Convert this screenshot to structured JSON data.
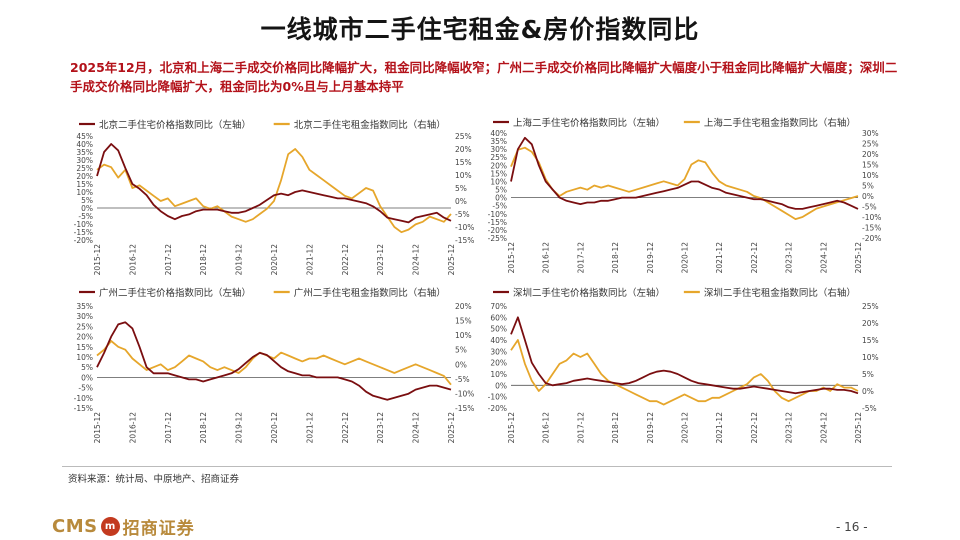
{
  "title": "一线城市二手住宅租金&房价指数同比",
  "summary": "2025年12月，北京和上海二手成交价格同比降幅扩大，租金同比降幅收窄；广州二手成交价格同比降幅扩大幅度小于租金同比降幅扩大幅度；深圳二手成交价格同比降幅扩大，租金同比为0%且与上月基本持平",
  "source": "资料来源：统计局、中原地产、招商证券",
  "footer": {
    "logo_text": "CMS",
    "logo_mark": "m",
    "logo_cn": "招商证券",
    "page_number": "- 16 -"
  },
  "colors": {
    "price": "#7a0e10",
    "rent": "#e6a62b",
    "zero": "#555555"
  },
  "chart_data": [
    {
      "type": "line",
      "city": "北京",
      "legend": [
        "北京二手住宅价格指数同比（左轴）",
        "北京二手住宅租金指数同比（右轴）"
      ],
      "x_ticks": [
        "2015-12",
        "2016-12",
        "2017-12",
        "2018-12",
        "2019-12",
        "2020-12",
        "2021-12",
        "2022-12",
        "2023-12",
        "2024-12",
        "2025-12"
      ],
      "left_axis": {
        "min": -20,
        "max": 45,
        "step": 5
      },
      "right_axis": {
        "min": -15,
        "max": 25,
        "step": 5
      },
      "series": [
        {
          "name": "北京二手住宅价格指数同比（左轴）",
          "axis": "left",
          "color": "#7a0e10",
          "values": [
            20,
            35,
            40,
            36,
            25,
            15,
            12,
            8,
            2,
            -2,
            -5,
            -7,
            -5,
            -4,
            -2,
            -1,
            -1,
            -1,
            -2,
            -3,
            -3,
            -2,
            0,
            2,
            5,
            8,
            9,
            8,
            10,
            11,
            10,
            9,
            8,
            7,
            6,
            6,
            5,
            4,
            3,
            1,
            -2,
            -6,
            -7,
            -8,
            -9,
            -6,
            -5,
            -4,
            -3,
            -6,
            -8
          ]
        },
        {
          "name": "北京二手住宅租金指数同比（右轴）",
          "axis": "right",
          "color": "#e6a62b",
          "values": [
            12,
            14,
            13,
            9,
            12,
            5,
            6,
            4,
            2,
            0,
            1,
            -2,
            -1,
            0,
            1,
            -2,
            -3,
            -2,
            -4,
            -6,
            -7,
            -8,
            -7,
            -5,
            -3,
            0,
            8,
            18,
            20,
            17,
            12,
            10,
            8,
            6,
            4,
            2,
            1,
            3,
            5,
            4,
            -2,
            -6,
            -10,
            -12,
            -11,
            -9,
            -8,
            -6,
            -7,
            -8,
            -5
          ]
        }
      ]
    },
    {
      "type": "line",
      "city": "上海",
      "legend": [
        "上海二手住宅价格指数同比（左轴）",
        "上海二手住宅租金指数同比（右轴）"
      ],
      "x_ticks": [
        "2015-12",
        "2016-12",
        "2017-12",
        "2018-12",
        "2019-12",
        "2020-12",
        "2021-12",
        "2022-12",
        "2023-12",
        "2024-12",
        "2025-12"
      ],
      "left_axis": {
        "min": -25,
        "max": 40,
        "step": 5
      },
      "right_axis": {
        "min": -20,
        "max": 30,
        "step": 5
      },
      "series": [
        {
          "name": "上海二手住宅价格指数同比（左轴）",
          "axis": "left",
          "color": "#7a0e10",
          "values": [
            10,
            30,
            37,
            33,
            20,
            10,
            5,
            0,
            -2,
            -3,
            -4,
            -3,
            -3,
            -2,
            -2,
            -1,
            0,
            0,
            0,
            1,
            2,
            3,
            4,
            5,
            6,
            8,
            10,
            10,
            8,
            6,
            5,
            3,
            2,
            1,
            0,
            -1,
            -1,
            -2,
            -3,
            -4,
            -6,
            -7,
            -7,
            -6,
            -5,
            -4,
            -3,
            -2,
            -3,
            -5,
            -7
          ]
        },
        {
          "name": "上海二手住宅租金指数同比（右轴）",
          "axis": "right",
          "color": "#e6a62b",
          "values": [
            14,
            22,
            23,
            21,
            16,
            8,
            3,
            0,
            2,
            3,
            4,
            3,
            5,
            4,
            5,
            4,
            3,
            2,
            3,
            4,
            5,
            6,
            7,
            6,
            5,
            8,
            15,
            17,
            16,
            11,
            7,
            5,
            4,
            3,
            2,
            0,
            -1,
            -3,
            -5,
            -7,
            -9,
            -11,
            -10,
            -8,
            -6,
            -5,
            -4,
            -3,
            -2,
            -1,
            0
          ]
        }
      ]
    },
    {
      "type": "line",
      "city": "广州",
      "legend": [
        "广州二手住宅价格指数同比（左轴）",
        "广州二手住宅租金指数同比（右轴）"
      ],
      "x_ticks": [
        "2015-12",
        "2016-12",
        "2017-12",
        "2018-12",
        "2019-12",
        "2020-12",
        "2021-12",
        "2022-12",
        "2023-12",
        "2024-12",
        "2025-12"
      ],
      "left_axis": {
        "min": -15,
        "max": 35,
        "step": 5
      },
      "right_axis": {
        "min": -15,
        "max": 20,
        "step": 5
      },
      "series": [
        {
          "name": "广州二手住宅价格指数同比（左轴）",
          "axis": "left",
          "color": "#7a0e10",
          "values": [
            5,
            12,
            20,
            26,
            27,
            24,
            15,
            5,
            2,
            2,
            2,
            1,
            0,
            -1,
            -1,
            -2,
            -1,
            0,
            1,
            2,
            4,
            7,
            10,
            12,
            11,
            8,
            5,
            3,
            2,
            1,
            1,
            0,
            0,
            0,
            0,
            -1,
            -2,
            -4,
            -7,
            -9,
            -10,
            -11,
            -10,
            -9,
            -8,
            -6,
            -5,
            -4,
            -4,
            -5,
            -6
          ]
        },
        {
          "name": "广州二手住宅租金指数同比（右轴）",
          "axis": "right",
          "color": "#e6a62b",
          "values": [
            3,
            5,
            8,
            6,
            5,
            2,
            0,
            -2,
            -1,
            0,
            -2,
            -1,
            1,
            3,
            2,
            1,
            -1,
            -2,
            -1,
            -2,
            -3,
            -1,
            2,
            4,
            3,
            2,
            4,
            3,
            2,
            1,
            2,
            2,
            3,
            2,
            1,
            0,
            1,
            2,
            1,
            0,
            -1,
            -2,
            -3,
            -2,
            -1,
            0,
            -1,
            -2,
            -3,
            -4,
            -7
          ]
        }
      ]
    },
    {
      "type": "line",
      "city": "深圳",
      "legend": [
        "深圳二手住宅价格指数同比（左轴）",
        "深圳二手住宅租金指数同比（右轴）"
      ],
      "x_ticks": [
        "2015-12",
        "2016-12",
        "2017-12",
        "2018-12",
        "2019-12",
        "2020-12",
        "2021-12",
        "2022-12",
        "2023-12",
        "2024-12",
        "2025-12"
      ],
      "left_axis": {
        "min": -20,
        "max": 70,
        "step": 10
      },
      "right_axis": {
        "min": -5,
        "max": 25,
        "step": 5
      },
      "series": [
        {
          "name": "深圳二手住宅价格指数同比（左轴）",
          "axis": "left",
          "color": "#7a0e10",
          "values": [
            45,
            60,
            40,
            20,
            10,
            2,
            0,
            1,
            2,
            4,
            5,
            6,
            5,
            4,
            3,
            2,
            1,
            2,
            4,
            7,
            10,
            12,
            13,
            12,
            10,
            7,
            4,
            2,
            1,
            0,
            -1,
            -2,
            -3,
            -3,
            -2,
            -1,
            -2,
            -3,
            -4,
            -5,
            -6,
            -7,
            -6,
            -5,
            -4,
            -3,
            -3,
            -4,
            -4,
            -5,
            -7
          ]
        },
        {
          "name": "深圳二手住宅租金指数同比（右轴）",
          "axis": "right",
          "color": "#e6a62b",
          "values": [
            12,
            15,
            8,
            3,
            0,
            2,
            5,
            8,
            9,
            11,
            10,
            11,
            8,
            5,
            3,
            2,
            1,
            0,
            -1,
            -2,
            -3,
            -3,
            -4,
            -3,
            -2,
            -1,
            -2,
            -3,
            -3,
            -2,
            -2,
            -1,
            0,
            1,
            2,
            4,
            5,
            3,
            0,
            -2,
            -3,
            -2,
            -1,
            0,
            0,
            1,
            0,
            2,
            1,
            1,
            0
          ]
        }
      ]
    }
  ]
}
